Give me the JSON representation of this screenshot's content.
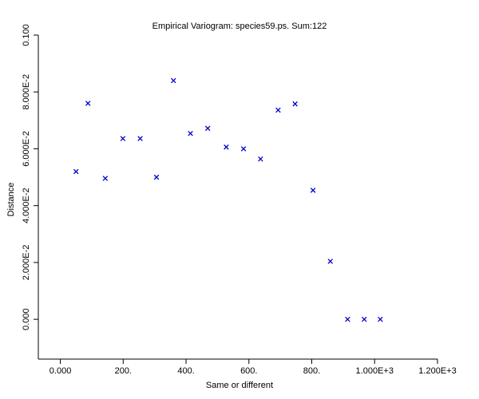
{
  "chart_data": {
    "type": "scatter",
    "title": "Empirical Variogram: species59.ps. Sum:122",
    "xlabel": "Same or different",
    "ylabel": "Distance",
    "xlim": [
      -70,
      1200
    ],
    "ylim": [
      -0.014,
      0.1
    ],
    "x_ticks": [
      {
        "value": 0,
        "label": "0.000"
      },
      {
        "value": 200,
        "label": "200."
      },
      {
        "value": 400,
        "label": "400."
      },
      {
        "value": 600,
        "label": "600."
      },
      {
        "value": 800,
        "label": "800."
      },
      {
        "value": 1000,
        "label": "1.000E+3"
      },
      {
        "value": 1200,
        "label": "1.200E+3"
      }
    ],
    "y_ticks": [
      {
        "value": 0,
        "label": "0.000"
      },
      {
        "value": 0.02,
        "label": "2.000E-2"
      },
      {
        "value": 0.04,
        "label": "4.000E-2"
      },
      {
        "value": 0.06,
        "label": "6.000E-2"
      },
      {
        "value": 0.08,
        "label": "8.000E-2"
      },
      {
        "value": 0.1,
        "label": "0.100"
      }
    ],
    "marker": "x",
    "marker_color": "#0000cc",
    "grid": false,
    "series": [
      {
        "x": [
          50,
          88,
          143,
          199,
          254,
          306,
          360,
          414,
          469,
          528,
          583,
          637,
          693,
          747,
          804,
          859,
          914,
          967,
          1018
        ],
        "y": [
          0.052,
          0.076,
          0.0496,
          0.0636,
          0.0636,
          0.05,
          0.084,
          0.0654,
          0.0672,
          0.0606,
          0.06,
          0.0564,
          0.0736,
          0.0758,
          0.0454,
          0.0204,
          0.0,
          0.0,
          0.0
        ]
      }
    ]
  }
}
